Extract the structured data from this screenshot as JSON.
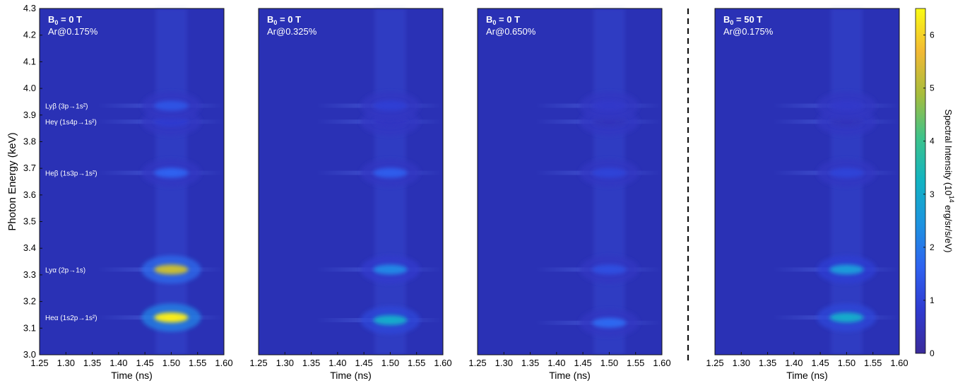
{
  "colors": {
    "background": "#2a31b5",
    "colormap": [
      "#3a2b9a",
      "#2f3ad0",
      "#2f62f0",
      "#1d93e0",
      "#12b3c2",
      "#3dc38b",
      "#a6bd3d",
      "#f2b934",
      "#f9fb15"
    ],
    "divider": "#111111"
  },
  "chart_data": {
    "type": "heatmap",
    "ylabel": "Photon Energy (keV)",
    "xlabel": "Time (ns)",
    "xlim": [
      1.25,
      1.6
    ],
    "ylim": [
      3.0,
      4.3
    ],
    "x_ticks": [
      "1.25",
      "1.30",
      "1.35",
      "1.40",
      "1.45",
      "1.50",
      "1.55",
      "1.60"
    ],
    "y_ticks": [
      "3.0",
      "3.1",
      "3.2",
      "3.3",
      "3.4",
      "3.5",
      "3.6",
      "3.7",
      "3.8",
      "3.9",
      "4.0",
      "4.1",
      "4.2",
      "4.3"
    ],
    "colorbar": {
      "label_prefix": "Spectral Intensity (10",
      "label_exp": "14",
      "label_suffix": " erg/sr/s/eV)",
      "ticks": [
        "0",
        "1",
        "2",
        "3",
        "4",
        "5",
        "6"
      ],
      "range": [
        0,
        6.5
      ]
    },
    "line_labels": [
      {
        "text": "Lyβ (3p→1s²)",
        "energy": 3.935
      },
      {
        "text": "Heγ (1s4p→1s²)",
        "energy": 3.875
      },
      {
        "text": "Heβ (1s3p→1s²)",
        "energy": 3.683
      },
      {
        "text": "Lyα (2p→1s)",
        "energy": 3.32
      },
      {
        "text": "Heα (1s2p→1s²)",
        "energy": 3.14
      }
    ],
    "panels": [
      {
        "field_main": "B",
        "field_sub": "0",
        "field_value": " = 0 T",
        "doping": "Ar@0.175%",
        "features": [
          {
            "line": "Heα",
            "energy": 3.14,
            "time": 1.5,
            "peak": 6.3
          },
          {
            "line": "Lyα",
            "energy": 3.32,
            "time": 1.5,
            "peak": 5.2
          },
          {
            "line": "Heβ",
            "energy": 3.683,
            "time": 1.5,
            "peak": 1.6
          },
          {
            "line": "Heγ",
            "energy": 3.875,
            "time": 1.5,
            "peak": 0.8
          },
          {
            "line": "Lyβ",
            "energy": 3.935,
            "time": 1.5,
            "peak": 1.3
          }
        ]
      },
      {
        "field_main": "B",
        "field_sub": "0",
        "field_value": " = 0 T",
        "doping": "Ar@0.325%",
        "features": [
          {
            "line": "Heα",
            "energy": 3.13,
            "time": 1.5,
            "peak": 3.0
          },
          {
            "line": "Lyα",
            "energy": 3.32,
            "time": 1.5,
            "peak": 2.2
          },
          {
            "line": "Heβ",
            "energy": 3.683,
            "time": 1.5,
            "peak": 1.5
          },
          {
            "line": "Heγ",
            "energy": 3.875,
            "time": 1.5,
            "peak": 0.6
          },
          {
            "line": "Lyβ",
            "energy": 3.935,
            "time": 1.5,
            "peak": 0.9
          }
        ]
      },
      {
        "field_main": "B",
        "field_sub": "0",
        "field_value": " = 0 T",
        "doping": "Ar@0.650%",
        "features": [
          {
            "line": "Heα",
            "energy": 3.12,
            "time": 1.5,
            "peak": 1.7
          },
          {
            "line": "Lyα",
            "energy": 3.32,
            "time": 1.5,
            "peak": 1.2
          },
          {
            "line": "Heβ",
            "energy": 3.683,
            "time": 1.5,
            "peak": 1.0
          },
          {
            "line": "Heγ",
            "energy": 3.875,
            "time": 1.5,
            "peak": 0.5
          },
          {
            "line": "Lyβ",
            "energy": 3.935,
            "time": 1.5,
            "peak": 0.7
          }
        ]
      },
      {
        "field_main": "B",
        "field_sub": "0",
        "field_value": " = 50 T",
        "doping": "Ar@0.175%",
        "features": [
          {
            "line": "Heα",
            "energy": 3.14,
            "time": 1.5,
            "peak": 3.0
          },
          {
            "line": "Lyα",
            "energy": 3.32,
            "time": 1.5,
            "peak": 2.6
          },
          {
            "line": "Heβ",
            "energy": 3.683,
            "time": 1.5,
            "peak": 1.0
          },
          {
            "line": "Heγ",
            "energy": 3.875,
            "time": 1.5,
            "peak": 0.5
          },
          {
            "line": "Lyβ",
            "energy": 3.935,
            "time": 1.5,
            "peak": 0.7
          }
        ]
      }
    ]
  }
}
